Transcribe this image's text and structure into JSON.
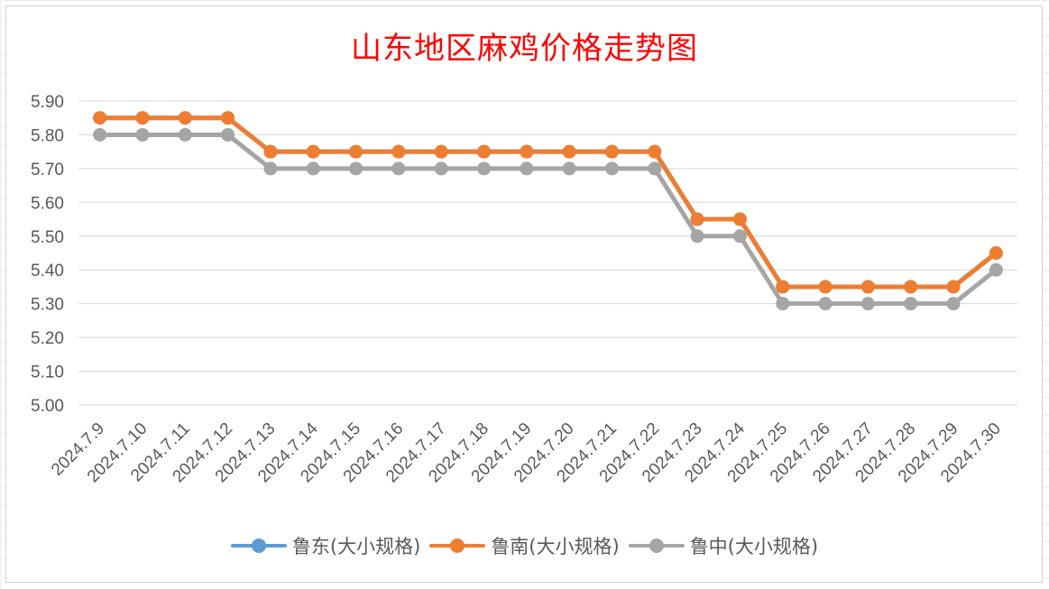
{
  "chart_data": {
    "type": "line",
    "title": "山东地区麻鸡价格走势图",
    "xlabel": "",
    "ylabel": "",
    "ylim": [
      5.0,
      5.9
    ],
    "yticks": [
      "5.90",
      "5.80",
      "5.70",
      "5.60",
      "5.50",
      "5.40",
      "5.30",
      "5.20",
      "5.10",
      "5.00"
    ],
    "grid": true,
    "legend_position": "bottom",
    "categories": [
      "2024.7.9",
      "2024.7.10",
      "2024.7.11",
      "2024.7.12",
      "2024.7.13",
      "2024.7.14",
      "2024.7.15",
      "2024.7.16",
      "2024.7.17",
      "2024.7.18",
      "2024.7.19",
      "2024.7.20",
      "2024.7.21",
      "2024.7.22",
      "2024.7.23",
      "2024.7.24",
      "2024.7.25",
      "2024.7.26",
      "2024.7.27",
      "2024.7.28",
      "2024.7.29",
      "2024.7.30"
    ],
    "series": [
      {
        "name": "鲁东(大小规格)",
        "color": "#5B9BD5",
        "values": [
          5.85,
          5.85,
          5.85,
          5.85,
          5.75,
          5.75,
          5.75,
          5.75,
          5.75,
          5.75,
          5.75,
          5.75,
          5.75,
          5.75,
          5.55,
          5.55,
          5.35,
          5.35,
          5.35,
          5.35,
          5.35,
          5.45
        ]
      },
      {
        "name": "鲁南(大小规格)",
        "color": "#ED7D31",
        "values": [
          5.85,
          5.85,
          5.85,
          5.85,
          5.75,
          5.75,
          5.75,
          5.75,
          5.75,
          5.75,
          5.75,
          5.75,
          5.75,
          5.75,
          5.55,
          5.55,
          5.35,
          5.35,
          5.35,
          5.35,
          5.35,
          5.45
        ]
      },
      {
        "name": "鲁中(大小规格)",
        "color": "#A5A5A5",
        "values": [
          5.8,
          5.8,
          5.8,
          5.8,
          5.7,
          5.7,
          5.7,
          5.7,
          5.7,
          5.7,
          5.7,
          5.7,
          5.7,
          5.7,
          5.5,
          5.5,
          5.3,
          5.3,
          5.3,
          5.3,
          5.3,
          5.4
        ]
      }
    ]
  }
}
